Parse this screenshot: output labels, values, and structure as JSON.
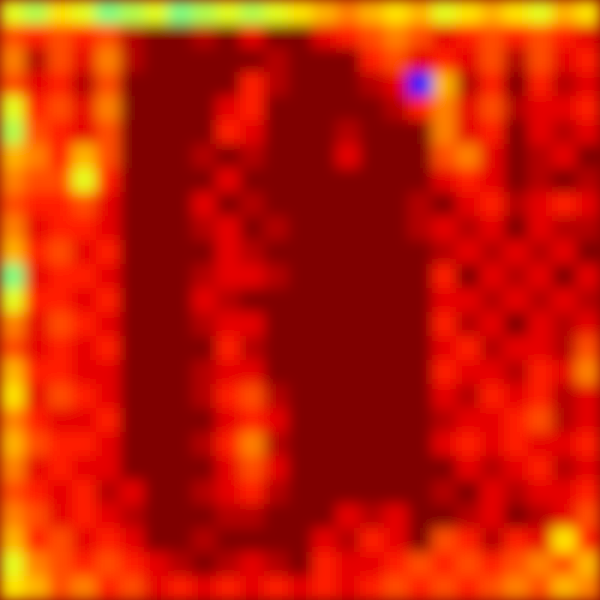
{
  "chart_data": {
    "type": "heatmap",
    "tick_labels": false,
    "zlim": [
      0,
      1
    ],
    "values": [
      [
        0.6,
        0.55,
        0.65,
        0.6,
        0.5,
        0.55,
        0.6,
        0.5,
        0.55,
        0.6,
        0.55,
        0.6,
        0.65,
        0.7,
        0.75,
        0.7,
        0.65,
        0.7,
        0.6,
        0.65,
        0.7,
        0.65,
        0.6,
        0.7,
        0.65
      ],
      [
        0.8,
        0.85,
        0.8,
        0.85,
        0.8,
        0.95,
        1,
        1,
        0.95,
        1,
        0.9,
        1,
        1,
        0.9,
        0.85,
        0.8,
        0.75,
        0.8,
        0.9,
        0.85,
        0.8,
        0.85,
        0.8,
        0.85,
        0.9
      ],
      [
        0.75,
        0.95,
        0.8,
        0.9,
        0.75,
        0.95,
        1,
        1,
        1,
        1,
        1,
        0.95,
        1,
        1,
        1,
        0.85,
        0.8,
        0.9,
        0.85,
        0.9,
        0.8,
        0.95,
        0.8,
        0.9,
        0.85
      ],
      [
        0.8,
        0.9,
        0.85,
        0.95,
        0.8,
        1,
        1,
        1,
        1,
        1,
        0.85,
        0.95,
        1,
        1,
        1,
        0.95,
        0.9,
        0.15,
        0.7,
        0.95,
        0.85,
        1,
        0.85,
        0.95,
        0.9
      ],
      [
        0.6,
        0.85,
        0.8,
        0.9,
        0.75,
        1,
        1,
        1,
        1,
        0.9,
        0.85,
        1,
        1,
        1,
        1,
        1,
        0.95,
        0.85,
        0.75,
        0.9,
        0.8,
        0.95,
        0.9,
        0.9,
        0.85
      ],
      [
        0.55,
        0.8,
        0.85,
        0.9,
        0.8,
        1,
        1,
        1,
        1,
        0.85,
        0.9,
        1,
        1,
        1,
        0.95,
        1,
        1,
        1,
        0.75,
        0.9,
        0.85,
        1,
        0.9,
        0.95,
        0.9
      ],
      [
        0.7,
        0.75,
        0.85,
        0.7,
        0.8,
        1,
        1,
        1,
        0.95,
        1,
        0.95,
        1,
        1,
        1,
        0.9,
        1,
        1,
        1,
        0.8,
        0.75,
        0.9,
        1,
        0.95,
        0.9,
        1
      ],
      [
        0.75,
        0.8,
        0.8,
        0.6,
        0.85,
        1,
        1,
        1,
        1,
        0.9,
        1,
        1,
        1,
        1,
        1,
        1,
        1,
        1,
        0.9,
        0.85,
        0.9,
        1,
        0.95,
        1,
        0.95
      ],
      [
        0.8,
        0.85,
        0.85,
        0.8,
        0.9,
        1,
        1,
        1,
        0.9,
        1,
        0.95,
        1,
        1,
        1,
        1,
        1,
        1,
        0.95,
        1,
        0.9,
        0.85,
        0.95,
        0.9,
        0.85,
        0.9
      ],
      [
        0.75,
        0.9,
        0.85,
        0.85,
        0.9,
        1,
        1,
        1,
        0.95,
        0.9,
        1,
        0.95,
        1,
        1,
        1,
        1,
        1,
        0.95,
        0.9,
        0.95,
        0.9,
        1,
        0.9,
        0.95,
        0.95
      ],
      [
        0.7,
        0.85,
        0.8,
        0.9,
        0.85,
        1,
        1,
        1,
        1,
        0.9,
        0.95,
        1,
        1,
        1,
        1,
        1,
        1,
        1,
        0.95,
        0.9,
        0.95,
        0.9,
        0.95,
        0.9,
        1
      ],
      [
        0.5,
        0.9,
        0.85,
        0.85,
        0.9,
        1,
        1,
        1,
        0.95,
        0.9,
        0.9,
        0.95,
        1,
        1,
        1,
        1,
        1,
        1,
        0.85,
        1,
        0.9,
        0.95,
        0.9,
        1,
        0.9
      ],
      [
        0.6,
        0.85,
        0.85,
        0.9,
        0.85,
        1,
        1,
        1,
        0.9,
        0.95,
        1,
        1,
        1,
        1,
        1,
        1,
        1,
        1,
        0.9,
        0.9,
        0.95,
        0.9,
        0.95,
        0.9,
        0.95
      ],
      [
        0.75,
        0.9,
        0.8,
        0.85,
        0.9,
        1,
        1,
        1,
        0.95,
        0.9,
        0.9,
        1,
        1,
        1,
        1,
        1,
        1,
        1,
        0.85,
        0.95,
        0.9,
        1,
        0.9,
        0.95,
        0.9
      ],
      [
        0.8,
        0.9,
        0.85,
        0.9,
        0.85,
        1,
        1,
        1,
        1,
        0.85,
        0.95,
        1,
        1,
        1,
        1,
        1,
        1,
        1,
        0.9,
        0.85,
        0.95,
        0.9,
        0.9,
        0.95,
        0.8
      ],
      [
        0.7,
        0.85,
        0.85,
        0.9,
        0.9,
        1,
        1,
        1,
        0.95,
        0.9,
        0.9,
        1,
        1,
        1,
        1,
        1,
        1,
        1,
        0.85,
        0.9,
        0.9,
        0.95,
        0.85,
        0.9,
        0.75
      ],
      [
        0.65,
        0.9,
        0.8,
        0.85,
        0.9,
        1,
        1,
        1,
        0.95,
        0.85,
        0.8,
        0.95,
        1,
        1,
        1,
        1,
        1,
        1,
        0.9,
        0.95,
        0.85,
        0.9,
        0.85,
        0.95,
        0.9
      ],
      [
        0.75,
        0.85,
        0.9,
        0.9,
        0.85,
        1,
        1,
        1,
        1,
        0.9,
        0.85,
        0.9,
        1,
        1,
        1,
        1,
        1,
        1,
        0.95,
        0.9,
        0.9,
        0.85,
        0.8,
        0.95,
        0.9
      ],
      [
        0.7,
        0.8,
        0.85,
        0.85,
        0.9,
        1,
        1,
        1,
        0.95,
        0.85,
        0.75,
        0.95,
        1,
        1,
        1,
        1,
        1,
        1,
        0.9,
        0.85,
        0.9,
        0.85,
        0.9,
        0.9,
        0.85
      ],
      [
        0.75,
        0.9,
        0.85,
        0.9,
        0.9,
        1,
        1,
        1,
        1,
        0.9,
        0.8,
        0.9,
        1,
        1,
        1,
        1,
        1,
        1,
        1,
        0.9,
        0.95,
        0.9,
        0.85,
        0.95,
        0.9
      ],
      [
        0.8,
        0.85,
        0.9,
        0.85,
        0.95,
        0.9,
        1,
        1,
        0.95,
        0.9,
        0.85,
        0.95,
        1,
        1,
        1,
        1,
        1,
        1,
        0.95,
        1,
        0.9,
        0.95,
        0.9,
        0.9,
        0.85
      ],
      [
        0.75,
        0.8,
        0.9,
        0.85,
        0.9,
        0.95,
        1,
        1,
        1,
        0.95,
        0.95,
        1,
        1,
        1,
        0.9,
        0.95,
        0.9,
        1,
        1,
        0.95,
        0.9,
        1,
        0.95,
        0.9,
        0.8
      ],
      [
        0.7,
        0.85,
        0.8,
        0.9,
        0.85,
        0.9,
        1,
        1,
        0.95,
        1,
        1,
        1,
        1,
        0.9,
        0.95,
        0.85,
        0.9,
        1,
        0.8,
        0.85,
        0.95,
        0.85,
        0.9,
        0.65,
        0.85
      ],
      [
        0.6,
        0.75,
        0.8,
        0.85,
        0.8,
        0.85,
        0.9,
        0.95,
        1,
        0.95,
        0.9,
        0.95,
        1,
        0.85,
        0.9,
        0.9,
        0.85,
        0.8,
        0.85,
        0.8,
        0.85,
        0.8,
        0.75,
        0.8,
        0.7
      ],
      [
        0.65,
        0.7,
        0.8,
        0.75,
        0.85,
        0.8,
        0.9,
        0.85,
        0.9,
        0.85,
        0.9,
        0.85,
        0.9,
        0.85,
        0.9,
        0.85,
        0.8,
        0.85,
        0.8,
        0.85,
        0.8,
        0.75,
        0.8,
        0.7,
        0.75
      ]
    ]
  }
}
